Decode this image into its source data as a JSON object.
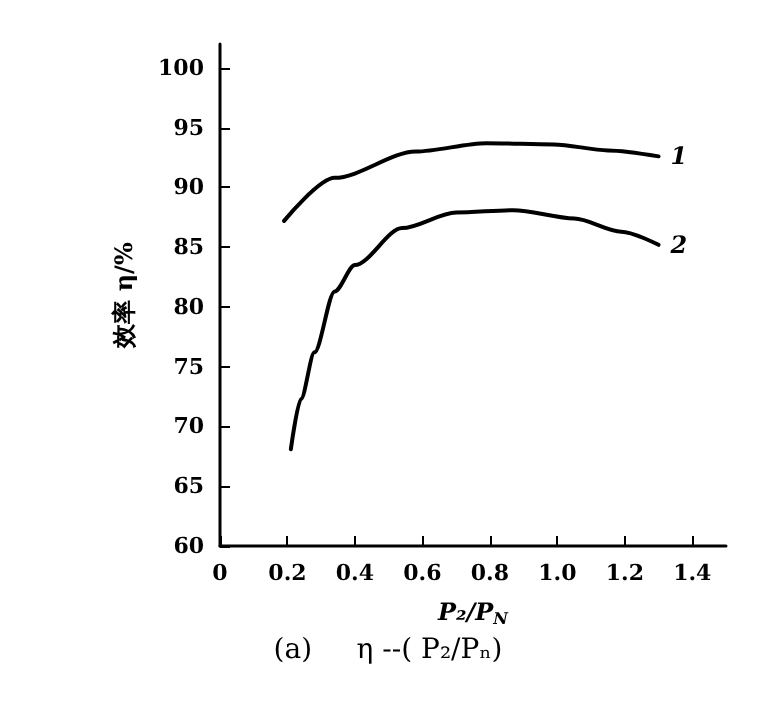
{
  "chart_data": {
    "type": "line",
    "xlabel": "P₂/P$_{N}$",
    "ylabel": "效率 η/%",
    "annotations": [
      "(a)     η --( P₂/Pₙ)"
    ],
    "xlim": [
      0,
      1.5
    ],
    "xticks": [
      0,
      0.2,
      0.4,
      0.6,
      0.8,
      {
        "value": 1.0,
        "label": "1.0"
      },
      1.2,
      1.4
    ],
    "ylim": [
      60,
      102
    ],
    "yticks": [
      60,
      65,
      70,
      75,
      80,
      85,
      90,
      95,
      100
    ],
    "grid": false,
    "marker": "none",
    "line_style": "solid",
    "series": [
      {
        "name": "1",
        "color": "#000000",
        "x": [
          0.19,
          0.34,
          0.58,
          0.79,
          0.99,
          1.15,
          1.3
        ],
        "values": [
          87.2,
          90.8,
          93.0,
          93.7,
          93.6,
          93.1,
          92.6
        ]
      },
      {
        "name": "2",
        "color": "#000000",
        "x": [
          0.21,
          0.24,
          0.28,
          0.34,
          0.4,
          0.54,
          0.7,
          0.87,
          1.05,
          1.19,
          1.3
        ],
        "values": [
          68.1,
          72.3,
          76.2,
          81.3,
          83.5,
          86.6,
          87.9,
          88.1,
          87.4,
          86.3,
          85.2
        ]
      }
    ]
  }
}
